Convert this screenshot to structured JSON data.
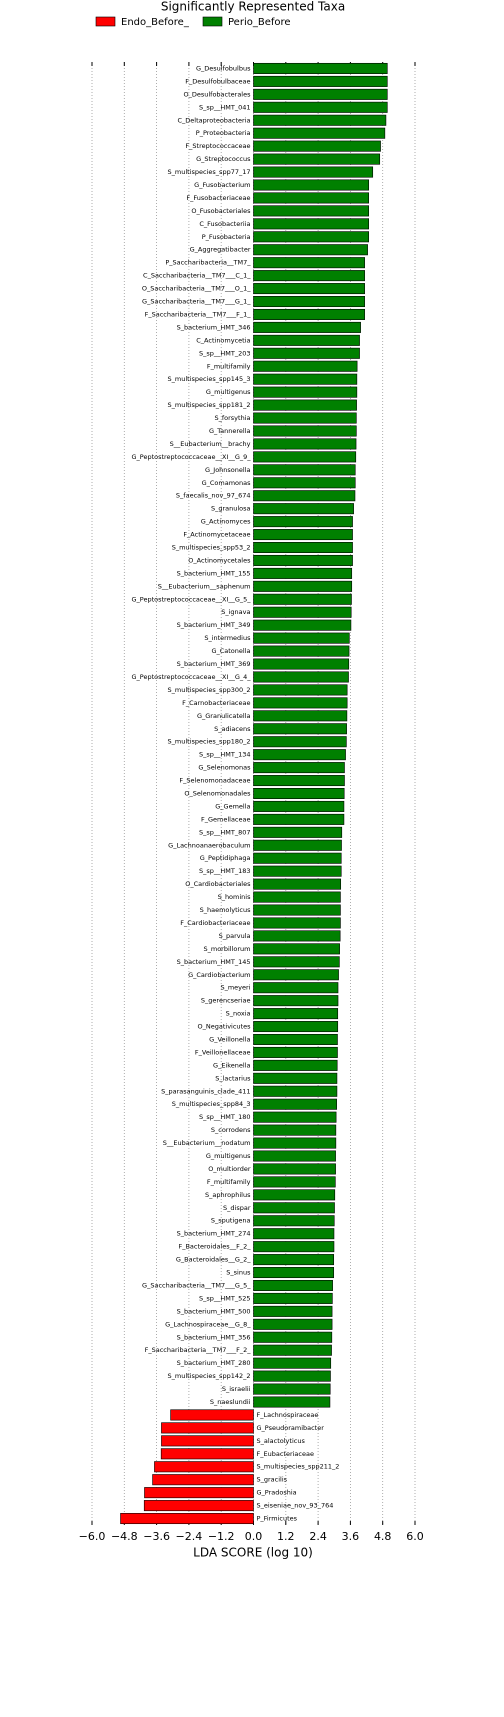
{
  "chart_data": {
    "type": "bar",
    "orientation": "horizontal",
    "title": "Significantly Represented Taxa",
    "x_label": "LDA SCORE (log 10)",
    "categories": [
      "G_Desulfobulbus",
      "F_Desulfobulbaceae",
      "O_Desulfobacterales",
      "S_sp__HMT_041",
      "C_Deltaproteobacteria",
      "P_Proteobacteria",
      "F_Streptococcaceae",
      "G_Streptococcus",
      "S_multispecies_spp77_17",
      "G_Fusobacterium",
      "F_Fusobacteriaceae",
      "O_Fusobacteriales",
      "C_Fusobacteriia",
      "P_Fusobacteria",
      "G_Aggregatibacter",
      "P_Saccharibacteria__TM7_",
      "C_Saccharibacteria__TM7___C_1_",
      "O_Saccharibacteria__TM7___O_1_",
      "G_Saccharibacteria__TM7___G_1_",
      "F_Saccharibacteria__TM7___F_1_",
      "S_bacterium_HMT_346",
      "C_Actinomycetia",
      "S_sp__HMT_203",
      "F_multifamily",
      "S_multispecies_spp145_3",
      "G_multigenus",
      "S_multispecies_spp181_2",
      "S_forsythia",
      "G_Tannerella",
      "S__Eubacterium__brachy",
      "G_Peptostreptococcaceae__XI__G_9_",
      "G_Johnsonella",
      "G_Comamonas",
      "S_faecalis_nov_97_674",
      "S_granulosa",
      "G_Actinomyces",
      "F_Actinomycetaceae",
      "S_multispecies_spp53_2",
      "O_Actinomycetales",
      "S_bacterium_HMT_155",
      "S__Eubacterium__saphenum",
      "G_Peptostreptococcaceae__XI__G_5_",
      "S_ignava",
      "S_bacterium_HMT_349",
      "S_intermedius",
      "G_Catonella",
      "S_bacterium_HMT_369",
      "G_Peptostreptococcaceae__XI__G_4_",
      "S_multispecies_spp300_2",
      "F_Carnobacteriaceae",
      "G_Granulicatella",
      "S_adiacens",
      "S_multispecies_spp180_2",
      "S_sp__HMT_134",
      "G_Selenomonas",
      "F_Selenomonadaceae",
      "O_Selenomonadales",
      "G_Gemella",
      "F_Gemellaceae",
      "S_sp__HMT_807",
      "G_Lachnoanaerobaculum",
      "G_Peptidiphaga",
      "S_sp__HMT_183",
      "O_Cardiobacteriales",
      "S_hominis",
      "S_haemolyticus",
      "F_Cardiobacteriaceae",
      "S_parvula",
      "S_morbillorum",
      "S_bacterium_HMT_145",
      "G_Cardiobacterium",
      "S_meyeri",
      "S_gerencseriae",
      "S_noxia",
      "O_Negativicutes",
      "G_Veillonella",
      "F_Veillonellaceae",
      "G_Eikenella",
      "S_lactarius",
      "S_parasanguinis_clade_411",
      "S_multispecies_spp84_3",
      "S_sp__HMT_180",
      "S_corrodens",
      "S__Eubacterium__nodatum",
      "G_multigenus",
      "O_multiorder",
      "F_multifamily",
      "S_aphrophilus",
      "S_dispar",
      "S_sputigena",
      "S_bacterium_HMT_274",
      "F_Bacteroidales__F_2_",
      "G_Bacteroidales__G_2_",
      "S_sinus",
      "G_Saccharibacteria__TM7___G_5_",
      "S_sp__HMT_525",
      "S_bacterium_HMT_500",
      "G_Lachnospiraceae__G_8_",
      "S_bacterium_HMT_356",
      "F_Saccharibacteria__TM7___F_2_",
      "S_bacterium_HMT_280",
      "S_multispecies_spp142_2",
      "S_israelii",
      "S_naeslundii",
      "F_Lachnospiraceae",
      "G_Pseudoramibacter",
      "S_alactolyticus",
      "F_Eubacteriaceae",
      "S_multispecies_spp211_2",
      "S_gracilis",
      "G_Pradoshia",
      "S_eiseniae_nov_93_764",
      "P_Firmicutes"
    ],
    "series": [
      {
        "name": "Endo_Before_",
        "color": "#ff0000",
        "values": [
          null,
          null,
          null,
          null,
          null,
          null,
          null,
          null,
          null,
          null,
          null,
          null,
          null,
          null,
          null,
          null,
          null,
          null,
          null,
          null,
          null,
          null,
          null,
          null,
          null,
          null,
          null,
          null,
          null,
          null,
          null,
          null,
          null,
          null,
          null,
          null,
          null,
          null,
          null,
          null,
          null,
          null,
          null,
          null,
          null,
          null,
          null,
          null,
          null,
          null,
          null,
          null,
          null,
          null,
          null,
          null,
          null,
          null,
          null,
          null,
          null,
          null,
          null,
          null,
          null,
          null,
          null,
          null,
          null,
          null,
          null,
          null,
          null,
          null,
          null,
          null,
          null,
          null,
          null,
          null,
          null,
          null,
          null,
          null,
          null,
          null,
          null,
          null,
          null,
          null,
          null,
          null,
          null,
          null,
          null,
          null,
          null,
          null,
          null,
          null,
          null,
          null,
          null,
          null,
          -3.08,
          -3.42,
          -3.42,
          -3.43,
          -3.68,
          -3.75,
          -4.05,
          -4.06,
          -4.94
        ]
      },
      {
        "name": "Perio_Before",
        "color": "#008000",
        "values": [
          4.97,
          4.97,
          4.97,
          4.97,
          4.92,
          4.88,
          4.72,
          4.69,
          4.43,
          4.28,
          4.28,
          4.28,
          4.28,
          4.28,
          4.24,
          4.13,
          4.13,
          4.13,
          4.13,
          4.13,
          3.98,
          3.94,
          3.94,
          3.85,
          3.84,
          3.84,
          3.83,
          3.82,
          3.82,
          3.81,
          3.8,
          3.78,
          3.78,
          3.77,
          3.72,
          3.68,
          3.68,
          3.68,
          3.68,
          3.65,
          3.65,
          3.64,
          3.63,
          3.62,
          3.56,
          3.55,
          3.54,
          3.53,
          3.48,
          3.48,
          3.47,
          3.46,
          3.45,
          3.42,
          3.38,
          3.38,
          3.37,
          3.36,
          3.36,
          3.28,
          3.27,
          3.26,
          3.26,
          3.24,
          3.23,
          3.23,
          3.23,
          3.22,
          3.2,
          3.19,
          3.16,
          3.14,
          3.14,
          3.13,
          3.13,
          3.12,
          3.12,
          3.11,
          3.1,
          3.1,
          3.09,
          3.07,
          3.06,
          3.06,
          3.05,
          3.05,
          3.04,
          3.02,
          3.01,
          3.0,
          2.99,
          2.99,
          2.98,
          2.98,
          2.94,
          2.93,
          2.92,
          2.92,
          2.91,
          2.9,
          2.87,
          2.86,
          2.85,
          2.84,
          null,
          null,
          null,
          null,
          null,
          null,
          null,
          null,
          null
        ]
      }
    ],
    "xlim": [
      -6.0,
      6.0
    ],
    "xticks": [
      {
        "value": -6.0,
        "label": "−6.0"
      },
      {
        "value": -4.8,
        "label": "−4.8"
      },
      {
        "value": -3.6,
        "label": "−3.6"
      },
      {
        "value": -2.4,
        "label": "−2.4"
      },
      {
        "value": -1.2,
        "label": "−1.2"
      },
      {
        "value": 0.0,
        "label": "0.0"
      },
      {
        "value": 1.2,
        "label": "1.2"
      },
      {
        "value": 2.4,
        "label": "2.4"
      },
      {
        "value": 3.6,
        "label": "3.6"
      },
      {
        "value": 4.8,
        "label": "4.8"
      },
      {
        "value": 6.0,
        "label": "6.0"
      }
    ],
    "grid": true,
    "legend": "top"
  }
}
